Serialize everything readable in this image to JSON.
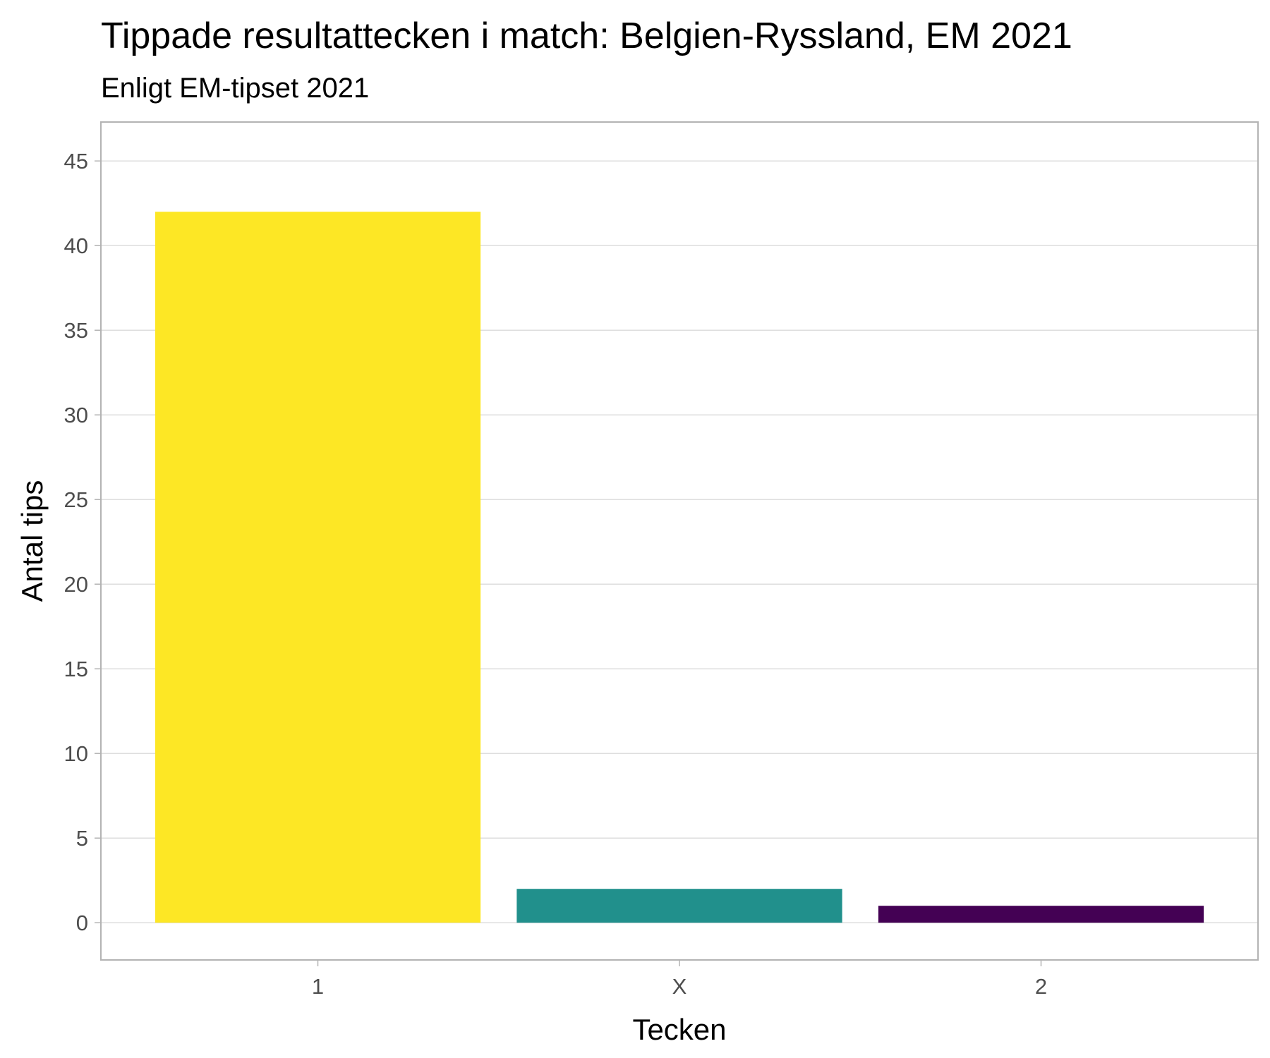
{
  "chart_data": {
    "type": "bar",
    "title": "Tippade resultattecken i match: Belgien-Ryssland, EM 2021",
    "subtitle": "Enligt EM-tipset 2021",
    "xlabel": "Tecken",
    "ylabel": "Antal tips",
    "categories": [
      "1",
      "X",
      "2"
    ],
    "values": [
      42,
      2,
      1
    ],
    "colors": [
      "#FDE725",
      "#21908C",
      "#440154"
    ],
    "ylim": [
      -2.2,
      47.3
    ],
    "yticks": [
      0,
      5,
      10,
      15,
      20,
      25,
      30,
      35,
      40,
      45
    ],
    "grid": true,
    "legend": "none"
  }
}
